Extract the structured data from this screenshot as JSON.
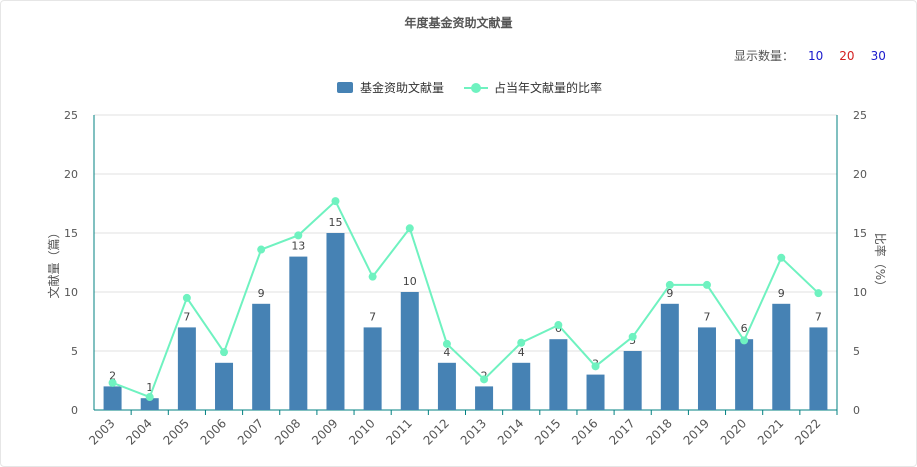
{
  "title": "年度基金资助文献量",
  "display_count": {
    "label": "显示数量：",
    "options": [
      "10",
      "20",
      "30"
    ]
  },
  "colors": {
    "bar": "#4682b4",
    "line": "#6ff2c0",
    "axis": "#008080",
    "grid": "#e0e0e0"
  },
  "chart_data": {
    "type": "bar",
    "title": "年度基金资助文献量",
    "categories": [
      "2003",
      "2004",
      "2005",
      "2006",
      "2007",
      "2008",
      "2009",
      "2010",
      "2011",
      "2012",
      "2013",
      "2014",
      "2015",
      "2016",
      "2017",
      "2018",
      "2019",
      "2020",
      "2021",
      "2022"
    ],
    "series": [
      {
        "name": "基金资助文献量",
        "type": "bar",
        "axis": "left",
        "values": [
          2,
          1,
          7,
          4,
          9,
          13,
          15,
          7,
          10,
          4,
          2,
          4,
          6,
          3,
          5,
          9,
          7,
          6,
          9,
          7
        ]
      },
      {
        "name": "占当年文献量的比率",
        "type": "line",
        "axis": "right",
        "values": [
          2.3,
          1.1,
          9.5,
          4.9,
          13.6,
          14.8,
          17.7,
          11.3,
          15.4,
          5.6,
          2.6,
          5.7,
          7.2,
          3.7,
          6.2,
          10.6,
          10.6,
          5.9,
          12.9,
          9.9
        ]
      }
    ],
    "ylabel": "文献量（篇）",
    "y2label": "比率（%）",
    "ylim": [
      0,
      25
    ],
    "y2lim": [
      0,
      25
    ],
    "yticks": [
      "0",
      "5",
      "10",
      "15",
      "20",
      "25"
    ],
    "y2ticks": [
      "0",
      "5",
      "10",
      "15",
      "20",
      "25"
    ],
    "grid": true,
    "legend_position": "top-center"
  }
}
